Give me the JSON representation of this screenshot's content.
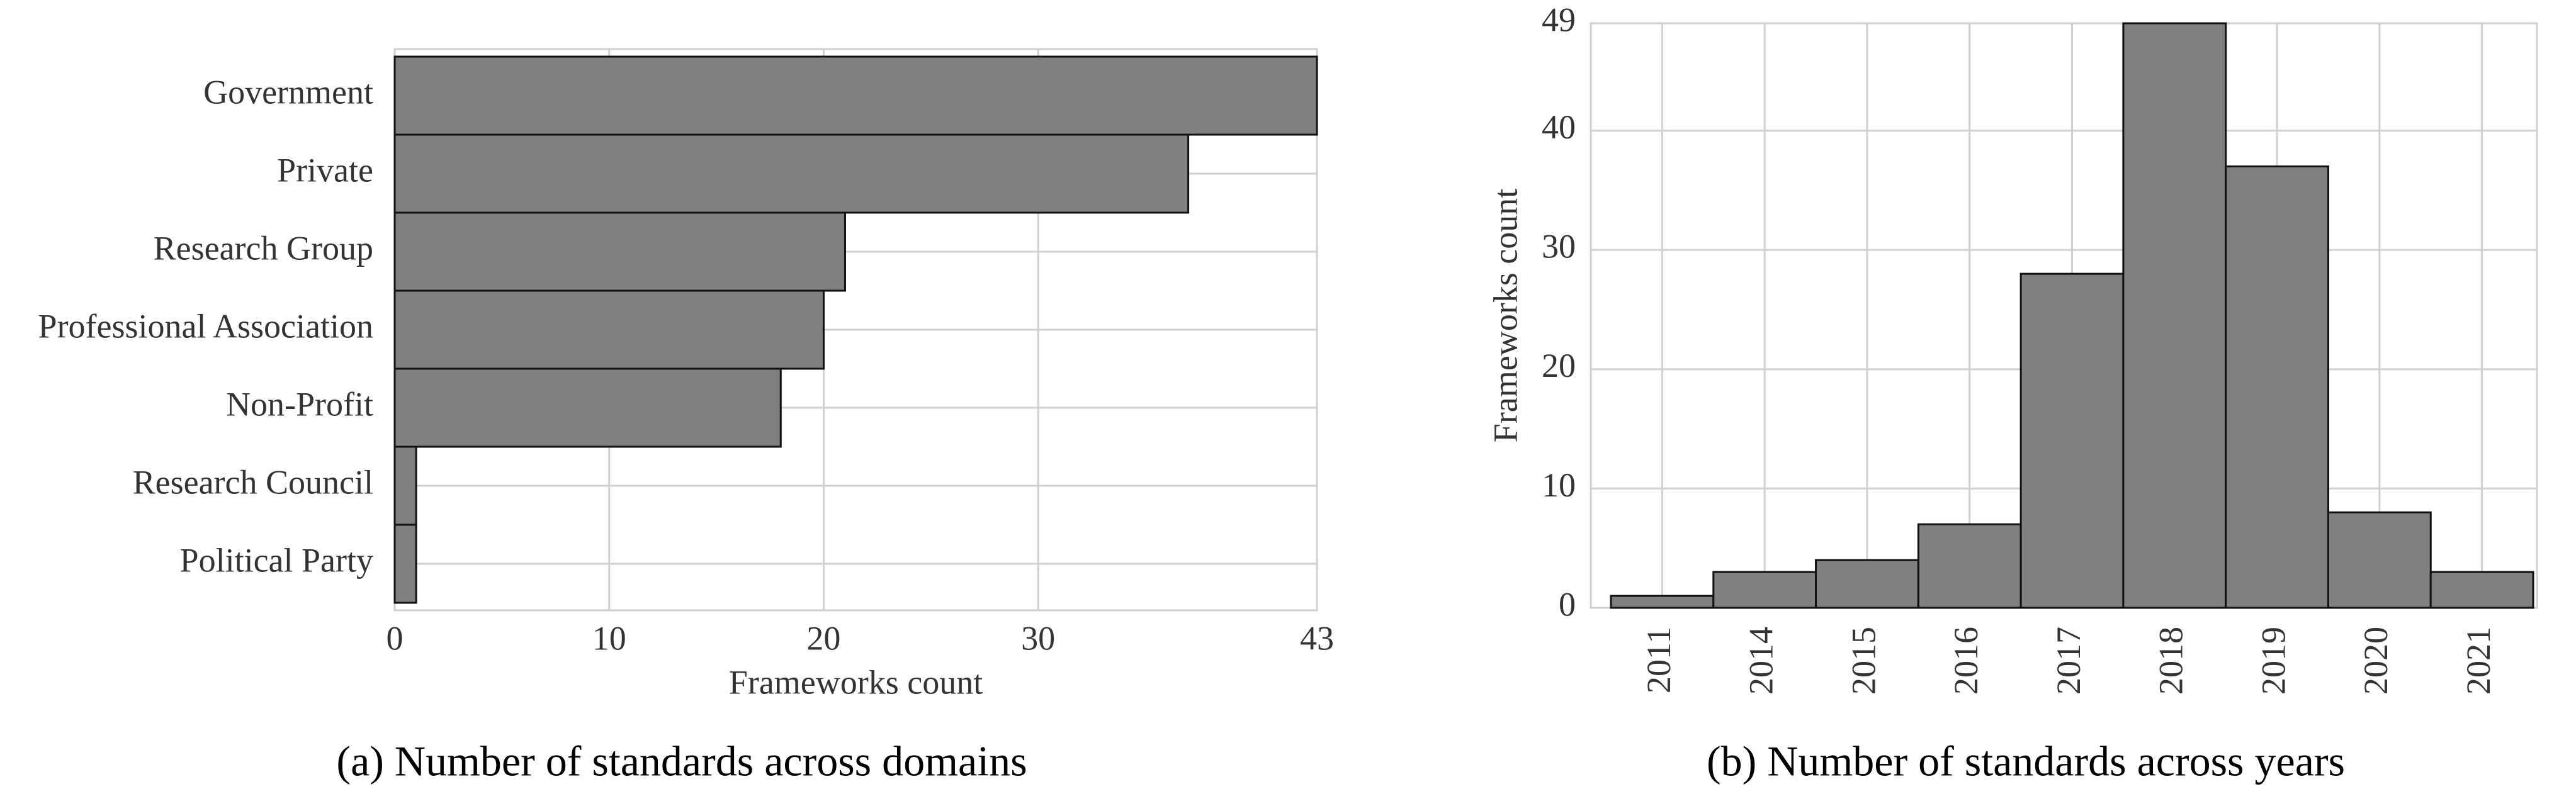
{
  "chart_data": [
    {
      "type": "barh",
      "caption": "(a) Number of standards across domains",
      "xlabel": "Frameworks count",
      "categories": [
        "Government",
        "Private",
        "Research Group",
        "Professional Association",
        "Non-Profit",
        "Research Council",
        "Political Party"
      ],
      "values": [
        43,
        37,
        21,
        20,
        18,
        1,
        1
      ],
      "color": "#808080",
      "xlim": [
        0,
        43
      ],
      "xticks": [
        0,
        10,
        20,
        30,
        43
      ],
      "grid": true
    },
    {
      "type": "bar",
      "caption": "(b) Number of standards across years",
      "ylabel": "Frameworks count",
      "categories": [
        "2011",
        "2014",
        "2015",
        "2016",
        "2017",
        "2018",
        "2019",
        "2020",
        "2021"
      ],
      "values": [
        1,
        3,
        4,
        7,
        28,
        49,
        37,
        8,
        3
      ],
      "color": "#808080",
      "ylim": [
        0,
        49
      ],
      "yticks": [
        0,
        10,
        20,
        30,
        40,
        49
      ],
      "grid": true
    }
  ]
}
